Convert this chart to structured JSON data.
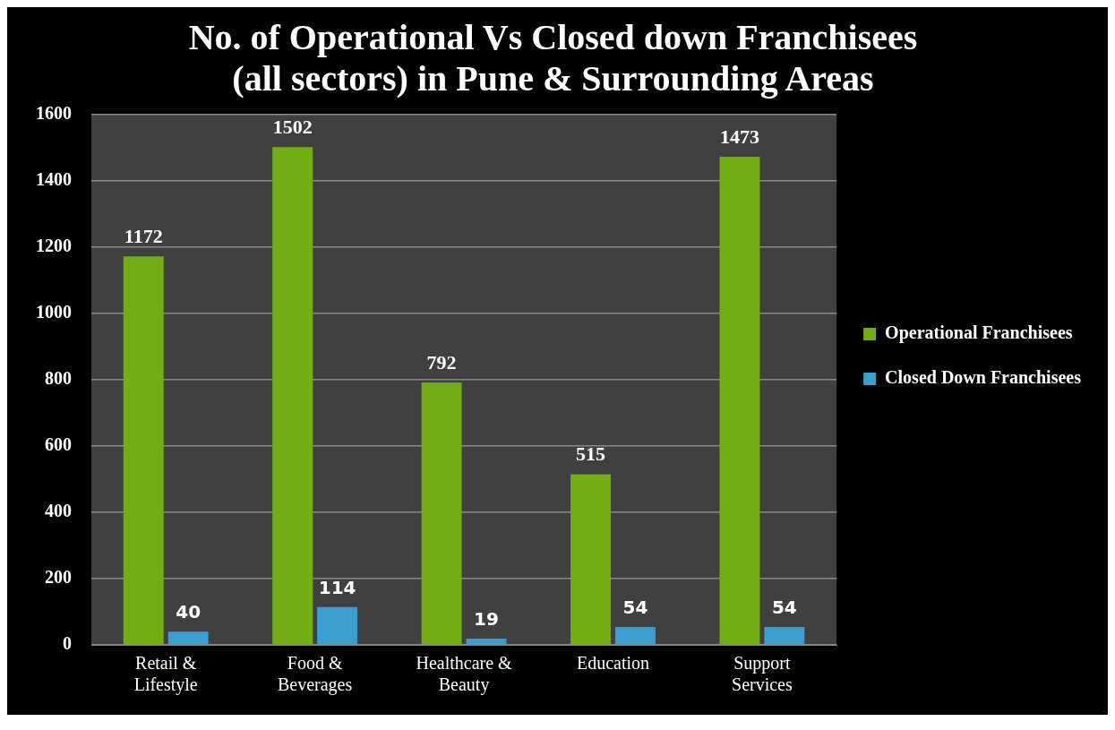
{
  "chart_data": {
    "type": "bar",
    "title": "No. of Operational Vs Closed down Franchisees (all sectors) in Pune & Surrounding Areas",
    "categories": [
      "Retail & Lifestyle",
      "Food & Beverages",
      "Healthcare & Beauty",
      "Education",
      "Support Services"
    ],
    "series": [
      {
        "name": "Operational Franchisees",
        "color": "#72ad14",
        "values": [
          1172,
          1502,
          792,
          515,
          1473
        ]
      },
      {
        "name": "Closed Down Franchisees",
        "color": "#3a9fcf",
        "values": [
          40,
          114,
          19,
          54,
          54
        ]
      }
    ],
    "ylim": [
      0,
      1600
    ],
    "yticks": [
      0,
      200,
      400,
      600,
      800,
      1000,
      1200,
      1400,
      1600
    ],
    "grid": "y",
    "legend": "right",
    "data_labels": true
  }
}
